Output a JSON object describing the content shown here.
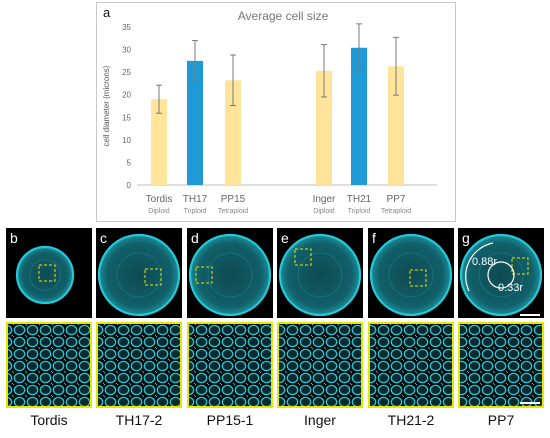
{
  "chart_data": {
    "type": "bar",
    "panel_letter": "a",
    "title": "Average cell size",
    "ylabel": "cell diameter (microns)",
    "ylim": [
      0,
      35
    ],
    "yticks": [
      0,
      5,
      10,
      15,
      20,
      25,
      30,
      35
    ],
    "categories": [
      "Tordis",
      "TH17",
      "PP15",
      "Inger",
      "TH21",
      "PP7"
    ],
    "ploidy": [
      "Diploid",
      "Triploid",
      "Tetraploid",
      "Diploid",
      "Triploid",
      "Tetraploid"
    ],
    "values": [
      19,
      27.5,
      23.2,
      25.3,
      30.4,
      26.3
    ],
    "errors": [
      3.1,
      4.5,
      5.6,
      5.8,
      5.3,
      6.4
    ],
    "colors": [
      "#ffe49a",
      "#1f9ad6",
      "#ffe49a",
      "#ffe49a",
      "#1f9ad6",
      "#ffe49a"
    ],
    "grid": false
  },
  "panels": {
    "top_letters": [
      "b",
      "c",
      "d",
      "e",
      "f",
      "g"
    ],
    "annotations": {
      "outer_ratio": "0.88r",
      "inner_ratio": "0.33r"
    },
    "bottom_labels": [
      "Tordis",
      "TH17-2",
      "PP15-1",
      "Inger",
      "TH21-2",
      "PP7"
    ],
    "colors": {
      "stain": "#25c8d6",
      "inset_border": "#e6e600"
    }
  }
}
